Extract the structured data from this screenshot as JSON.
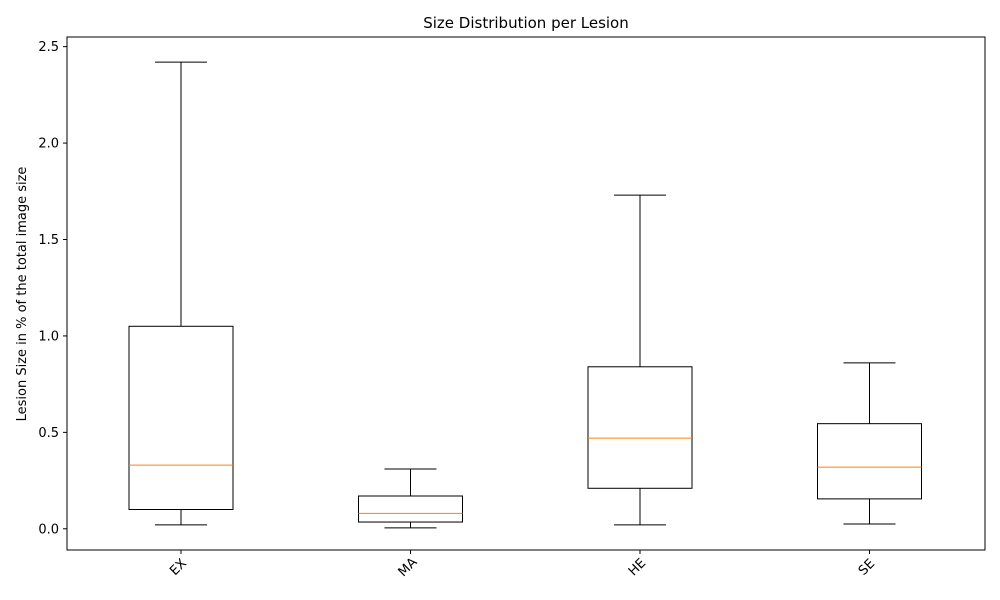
{
  "chart_data": {
    "type": "box",
    "title": "Size Distribution per Lesion",
    "xlabel": "",
    "ylabel": "Lesion Size in % of the total image size",
    "categories": [
      "EX",
      "MA",
      "HE",
      "SE"
    ],
    "boxes": [
      {
        "label": "EX",
        "whisker_low": 0.02,
        "q1": 0.1,
        "median": 0.33,
        "q3": 1.05,
        "whisker_high": 2.42
      },
      {
        "label": "MA",
        "whisker_low": 0.005,
        "q1": 0.035,
        "median": 0.08,
        "q3": 0.17,
        "whisker_high": 0.31
      },
      {
        "label": "HE",
        "whisker_low": 0.02,
        "q1": 0.21,
        "median": 0.47,
        "q3": 0.84,
        "whisker_high": 1.73
      },
      {
        "label": "SE",
        "whisker_low": 0.025,
        "q1": 0.155,
        "median": 0.32,
        "q3": 0.545,
        "whisker_high": 0.86
      }
    ],
    "ylim": [
      -0.11,
      2.55
    ],
    "yticks": [
      0.0,
      0.5,
      1.0,
      1.5,
      2.0,
      2.5
    ],
    "ytick_labels": [
      "0.0",
      "0.5",
      "1.0",
      "1.5",
      "2.0",
      "2.5"
    ],
    "xtick_rotation": 45,
    "grid": false,
    "colors": {
      "box": "#000000",
      "median": "#ff7f0e",
      "background": "#ffffff"
    }
  }
}
